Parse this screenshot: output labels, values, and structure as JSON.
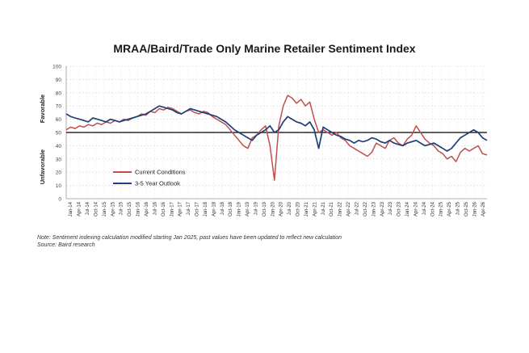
{
  "chart_data": {
    "type": "line",
    "title": "MRAA/Baird/Trade Only Marine Retailer Sentiment Index",
    "ylim": [
      0,
      100
    ],
    "yticks": [
      0,
      10,
      20,
      30,
      40,
      50,
      60,
      70,
      80,
      90,
      100
    ],
    "reference_line": 50,
    "ylabel_upper": "Favorable",
    "ylabel_lower": "Unfavorable",
    "grid": true,
    "legend_position": "lower-left",
    "xticks": [
      "Jan-14",
      "Apr-14",
      "Jul-14",
      "Oct-14",
      "Jan-15",
      "Apr-15",
      "Jul-15",
      "Oct-15",
      "Jan-16",
      "Apr-16",
      "Jul-16",
      "Oct-16",
      "Jan-17",
      "Apr-17",
      "Jul-17",
      "Oct-17",
      "Jan-18",
      "Apr-18",
      "Jul-18",
      "Oct-18",
      "Jan-19",
      "Apr-19",
      "Jul-19",
      "Oct-19",
      "Jan-20",
      "Apr-20",
      "Jul-20",
      "Oct-20",
      "Jan-21",
      "Apr-21",
      "Jul-21",
      "Oct-21",
      "Jan-22",
      "Apr-22",
      "Jul-22",
      "Oct-22",
      "Jan-23",
      "Apr-23",
      "Jul-23",
      "Oct-23",
      "Jan-24",
      "Apr-24",
      "Jul-24",
      "Oct-24",
      "Jan-25",
      "Apr-25",
      "Jul-25",
      "Oct-25",
      "Jan-26",
      "Apr-26"
    ],
    "series": [
      {
        "name": "Current Conditions",
        "color": "#c0504d",
        "values": [
          52,
          54,
          53,
          55,
          54,
          56,
          55,
          57,
          56,
          58,
          57,
          59,
          58,
          60,
          59,
          61,
          62,
          64,
          63,
          66,
          65,
          68,
          67,
          69,
          68,
          66,
          64,
          66,
          67,
          65,
          64,
          66,
          65,
          62,
          60,
          58,
          56,
          52,
          48,
          44,
          40,
          38,
          46,
          48,
          52,
          55,
          40,
          14,
          55,
          70,
          78,
          76,
          72,
          75,
          70,
          73,
          60,
          50,
          52,
          50,
          48,
          50,
          46,
          44,
          40,
          38,
          36,
          34,
          32,
          35,
          42,
          40,
          38,
          44,
          46,
          42,
          40,
          45,
          48,
          55,
          50,
          45,
          42,
          40,
          36,
          34,
          30,
          32,
          28,
          35,
          38,
          36,
          38,
          40,
          34,
          33
        ]
      },
      {
        "name": "3-5 Year Outlook",
        "color": "#1f3f78",
        "values": [
          64,
          62,
          61,
          60,
          59,
          58,
          61,
          60,
          59,
          58,
          60,
          59,
          58,
          59,
          60,
          61,
          62,
          63,
          64,
          66,
          68,
          70,
          69,
          68,
          67,
          65,
          64,
          66,
          68,
          67,
          66,
          65,
          64,
          63,
          62,
          60,
          58,
          55,
          52,
          50,
          48,
          46,
          44,
          48,
          50,
          52,
          55,
          50,
          52,
          58,
          62,
          60,
          58,
          57,
          55,
          58,
          52,
          38,
          54,
          52,
          50,
          48,
          47,
          45,
          44,
          42,
          44,
          43,
          44,
          46,
          45,
          43,
          42,
          44,
          42,
          41,
          40,
          42,
          43,
          44,
          42,
          40,
          41,
          42,
          40,
          38,
          36,
          38,
          42,
          46,
          48,
          50,
          52,
          50,
          46,
          44
        ]
      }
    ]
  },
  "notes": {
    "note": "Note: Sentiment indexing calculation modified  starting Jan 2025, past values have been updated to reflect new calculation",
    "source": "Source: Baird research"
  }
}
